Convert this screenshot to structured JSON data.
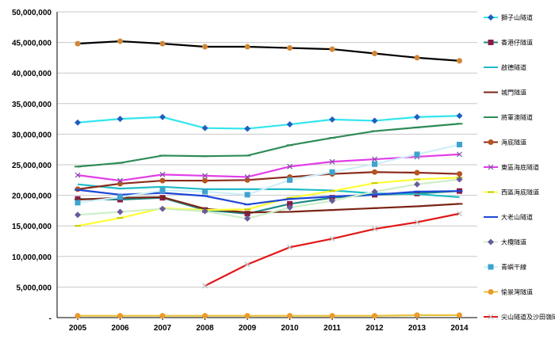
{
  "chart_data": {
    "type": "line",
    "title": "",
    "xlabel": "",
    "ylabel": "",
    "x": [
      "2005",
      "2006",
      "2007",
      "2008",
      "2009",
      "2010",
      "2011",
      "2012",
      "2013",
      "2014"
    ],
    "ylim": [
      0,
      50000000
    ],
    "y_ticks": [
      {
        "value": 0,
        "label": "-"
      },
      {
        "value": 5000000,
        "label": "5,000,000"
      },
      {
        "value": 10000000,
        "label": "10,000,000"
      },
      {
        "value": 15000000,
        "label": "15,000,000"
      },
      {
        "value": 20000000,
        "label": "20,000,000"
      },
      {
        "value": 25000000,
        "label": "25,000,000"
      },
      {
        "value": 30000000,
        "label": "30,000,000"
      },
      {
        "value": 35000000,
        "label": "35,000,000"
      },
      {
        "value": 40000000,
        "label": "40,000,000"
      },
      {
        "value": 45000000,
        "label": "45,000,000"
      },
      {
        "value": 50000000,
        "label": "50,000,000"
      }
    ],
    "grid": "horizontal",
    "legend_position": "right",
    "series": [
      {
        "name": "獅子山隧道",
        "color": "#33e5ee",
        "marker": "diamond",
        "marker_color": "#1f5fc0",
        "values": [
          31900000,
          32500000,
          32800000,
          31000000,
          30900000,
          31600000,
          32400000,
          32200000,
          32800000,
          33000000
        ]
      },
      {
        "name": "香港仔隧道",
        "color": "#1e8a82",
        "marker": "square",
        "marker_color": "#8b1a4a",
        "values": [
          19400000,
          19300000,
          19600000,
          17600000,
          17000000,
          18600000,
          19600000,
          20100000,
          20300000,
          20700000
        ]
      },
      {
        "name": "啟德隧道",
        "color": "#1fbcc6",
        "marker": "none",
        "marker_color": "#1fbcc6",
        "values": [
          21800000,
          21100000,
          21400000,
          21000000,
          21000000,
          21000000,
          20800000,
          20300000,
          20200000,
          19700000
        ]
      },
      {
        "name": "城門隧道",
        "color": "#7a2416",
        "marker": "dash",
        "marker_color": "#7a2416",
        "values": [
          19300000,
          19600000,
          19700000,
          17800000,
          17200000,
          17300000,
          17600000,
          17900000,
          18200000,
          18600000
        ]
      },
      {
        "name": "將軍澳隧道",
        "color": "#2e8b57",
        "marker": "dash",
        "marker_color": "#2e8b57",
        "values": [
          24700000,
          25300000,
          26500000,
          26400000,
          26500000,
          28200000,
          29400000,
          30500000,
          31100000,
          31700000
        ]
      },
      {
        "name": "海底隧道",
        "color": "#8b2b1b",
        "marker": "circle",
        "marker_color": "#b5541e",
        "values": [
          21000000,
          21900000,
          22400000,
          22400000,
          22500000,
          23000000,
          23500000,
          23800000,
          23700000,
          23500000
        ]
      },
      {
        "name": "東區海底隧道",
        "color": "#e23de8",
        "marker": "x",
        "marker_color": "#7a4fa0",
        "values": [
          23300000,
          22400000,
          23400000,
          23200000,
          23000000,
          24700000,
          25500000,
          25900000,
          26300000,
          26700000
        ]
      },
      {
        "name": "西區海底隧道",
        "color": "#ffff33",
        "marker": "dash",
        "marker_color": "#c8c800",
        "values": [
          15000000,
          16300000,
          17900000,
          17600000,
          17700000,
          19600000,
          20700000,
          22000000,
          22600000,
          22900000
        ]
      },
      {
        "name": "大老山隧道",
        "color": "#1f47d6",
        "marker": "dash",
        "marker_color": "#1f47d6",
        "values": [
          20900000,
          20100000,
          20400000,
          19900000,
          18500000,
          19400000,
          19800000,
          20100000,
          20600000,
          20700000
        ]
      },
      {
        "name": "大欖隧道",
        "color": "#cdeec8",
        "marker": "diamond",
        "marker_color": "#6a5a9c",
        "values": [
          16800000,
          17300000,
          17800000,
          17400000,
          16200000,
          18000000,
          19100000,
          20600000,
          21800000,
          22600000
        ]
      },
      {
        "name": "青嶼干線",
        "color": "#cfeff8",
        "marker": "square",
        "marker_color": "#3fa3cf",
        "values": [
          18800000,
          19700000,
          20800000,
          20600000,
          20100000,
          22500000,
          23800000,
          25100000,
          26700000,
          28300000
        ]
      },
      {
        "name": "愉景灣隧道",
        "color": "#e6c33a",
        "marker": "circle",
        "marker_color": "#eb9a2e",
        "values": [
          300000,
          300000,
          300000,
          300000,
          300000,
          300000,
          300000,
          300000,
          400000,
          400000
        ]
      },
      {
        "name": "尖山隧道及沙田嶺隧道",
        "color": "#e11818",
        "marker": "x",
        "marker_color": "#bbbbbb",
        "values": [
          null,
          null,
          null,
          5200000,
          8700000,
          11500000,
          12900000,
          14500000,
          15600000,
          17000000
        ]
      },
      {
        "name": "",
        "color": "#000000",
        "marker": "circle",
        "marker_color": "#d0873a",
        "values": [
          44800000,
          45200000,
          44800000,
          44300000,
          44300000,
          44100000,
          43900000,
          43200000,
          42500000,
          42000000
        ]
      }
    ]
  }
}
